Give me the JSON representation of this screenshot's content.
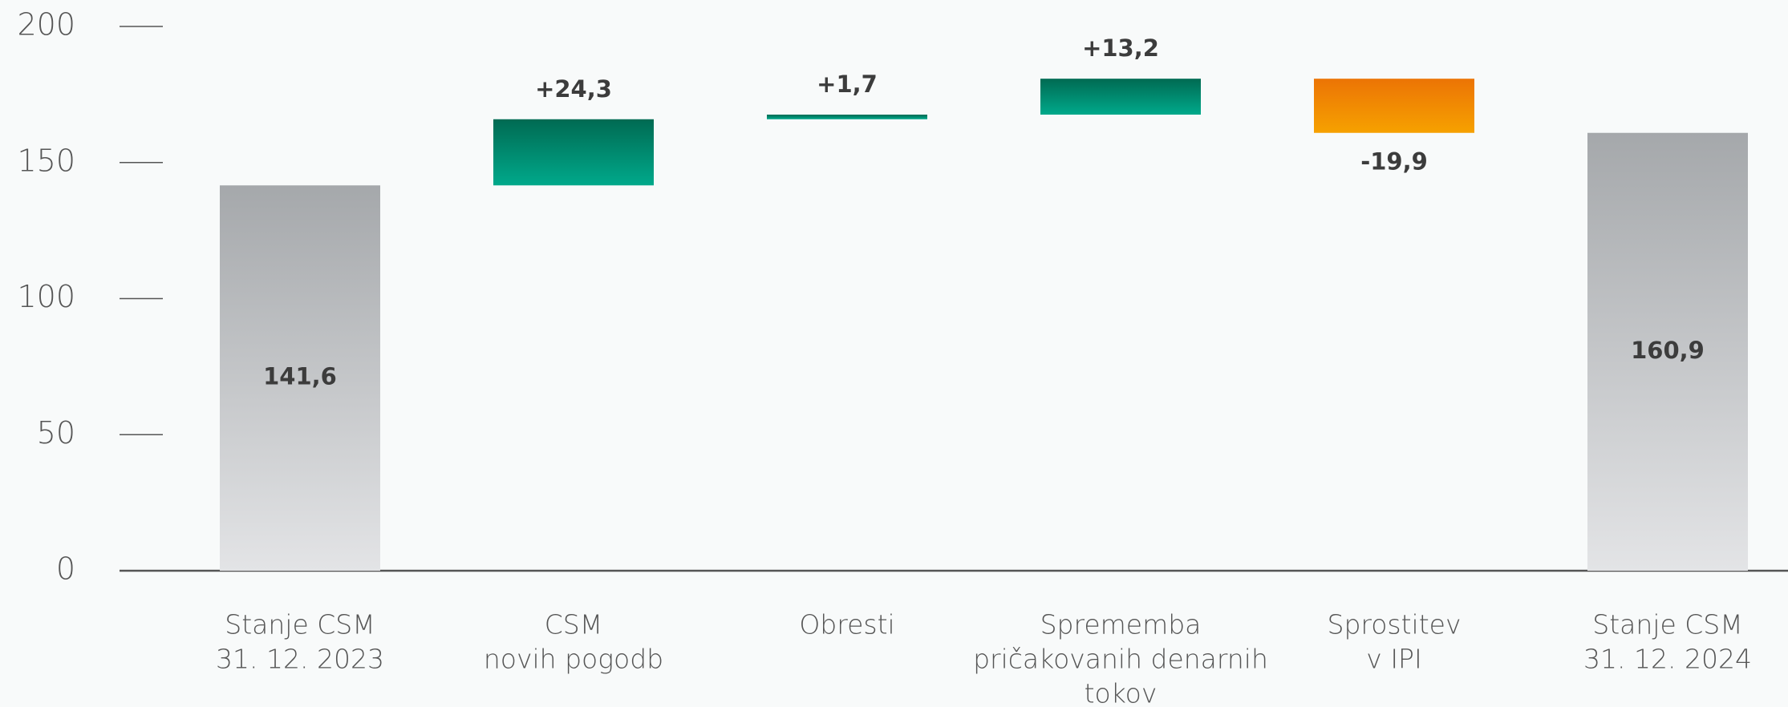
{
  "chart_data": {
    "type": "waterfall",
    "categories": [
      [
        "Stanje CSM",
        "31. 12. 2023"
      ],
      [
        "CSM",
        "novih pogodb"
      ],
      [
        "Obresti"
      ],
      [
        "Sprememba",
        "pričakovanih denarnih",
        "tokov"
      ],
      [
        "Sprostitev",
        "v IPI"
      ],
      [
        "Stanje CSM",
        "31. 12. 2024"
      ]
    ],
    "values": [
      141.6,
      24.3,
      1.7,
      13.2,
      -19.9,
      160.9
    ],
    "value_labels": [
      "141,6",
      "+24,3",
      "+1,7",
      "+13,2",
      "-19,9",
      "160,9"
    ],
    "totals": [
      0,
      5
    ],
    "colors": {
      "total": [
        "#a5a8ab",
        "#e3e4e6"
      ],
      "increase": [
        "#006a52",
        "#00a98b"
      ],
      "decrease": [
        "#ec7405",
        "#f6a100"
      ]
    },
    "ylim": [
      0,
      200
    ],
    "yticks": [
      0,
      50,
      100,
      150,
      200
    ]
  }
}
